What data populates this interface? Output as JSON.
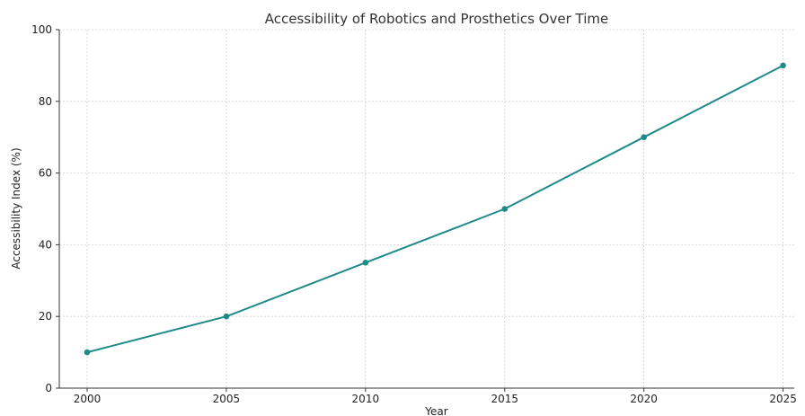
{
  "chart_data": {
    "type": "line",
    "title": "Accessibility of Robotics and Prosthetics Over Time",
    "xlabel": "Year",
    "ylabel": "Accessibility Index (%)",
    "x": [
      2000,
      2005,
      2010,
      2015,
      2020,
      2025
    ],
    "series": [
      {
        "values": [
          10,
          20,
          35,
          50,
          70,
          90
        ],
        "color": "#1f8a8a",
        "marker": "circle"
      }
    ],
    "xlim": [
      1999,
      2025.4
    ],
    "ylim": [
      0,
      100
    ],
    "xticks": [
      "2000",
      "2005",
      "2010",
      "2015",
      "2020",
      "2025"
    ],
    "yticks": [
      "0",
      "20",
      "40",
      "60",
      "80",
      "100"
    ],
    "grid": true,
    "grid_style": "dashed",
    "legend": "none"
  }
}
